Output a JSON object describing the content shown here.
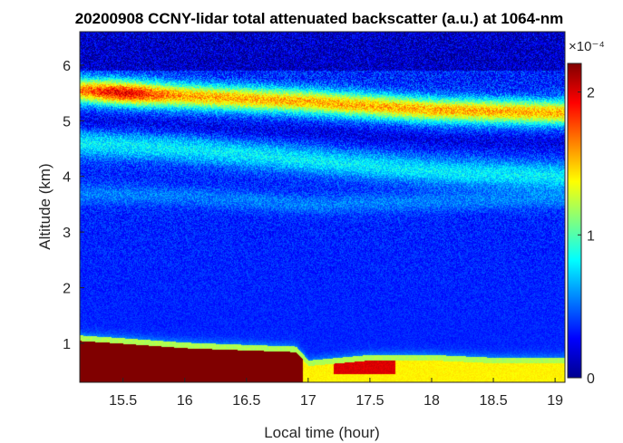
{
  "chart_data": {
    "type": "heatmap",
    "title": "20200908 CCNY-lidar total attenuated backscatter (a.u.) at 1064-nm",
    "xlabel": "Local time (hour)",
    "ylabel": "Altitude (km)",
    "xlim": [
      15.15,
      19.08
    ],
    "ylim": [
      0.3,
      6.6
    ],
    "xticks": [
      15.5,
      16,
      16.5,
      17,
      17.5,
      18,
      18.5,
      19
    ],
    "xtick_labels": [
      "15.5",
      "16",
      "16.5",
      "17",
      "17.5",
      "18",
      "18.5",
      "19"
    ],
    "yticks": [
      1,
      2,
      3,
      4,
      5,
      6
    ],
    "ytick_labels": [
      "1",
      "2",
      "3",
      "4",
      "5",
      "6"
    ],
    "colorbar": {
      "colormap": "jet",
      "clim": [
        0,
        2.2
      ],
      "ticks": [
        0,
        1,
        2
      ],
      "tick_labels": [
        "0",
        "1",
        "2"
      ],
      "exponent_label": "×10⁻⁴"
    },
    "layers": [
      {
        "feature": "boundary-layer aerosol, near-surface",
        "times": [
          15.15,
          15.5,
          16.0,
          16.5,
          16.9,
          17.0,
          17.5,
          18.0,
          18.5,
          19.08
        ],
        "top_km": [
          1.05,
          1.0,
          0.92,
          0.88,
          0.85,
          0.6,
          0.7,
          0.7,
          0.65,
          0.65
        ],
        "value": 2.1
      },
      {
        "feature": "elevated aerosol layer",
        "times": [
          15.15,
          16.0,
          17.0,
          18.0,
          19.08
        ],
        "center_km": [
          5.55,
          5.45,
          5.35,
          5.2,
          5.15
        ],
        "value": 1.6
      },
      {
        "feature": "upper aerosol band",
        "times": [
          15.15,
          16.0,
          17.0,
          18.0,
          19.08
        ],
        "center_km": [
          4.6,
          4.5,
          4.3,
          4.1,
          4.0
        ],
        "value": 0.8
      },
      {
        "feature": "mid-level band",
        "times": [
          15.15,
          16.0,
          17.0,
          18.0,
          19.08
        ],
        "center_km": [
          3.7,
          3.65,
          3.5,
          3.55,
          3.6
        ],
        "value": 0.5
      }
    ],
    "background_value": 0.35,
    "upper_free_troposphere_value": 0.15
  }
}
